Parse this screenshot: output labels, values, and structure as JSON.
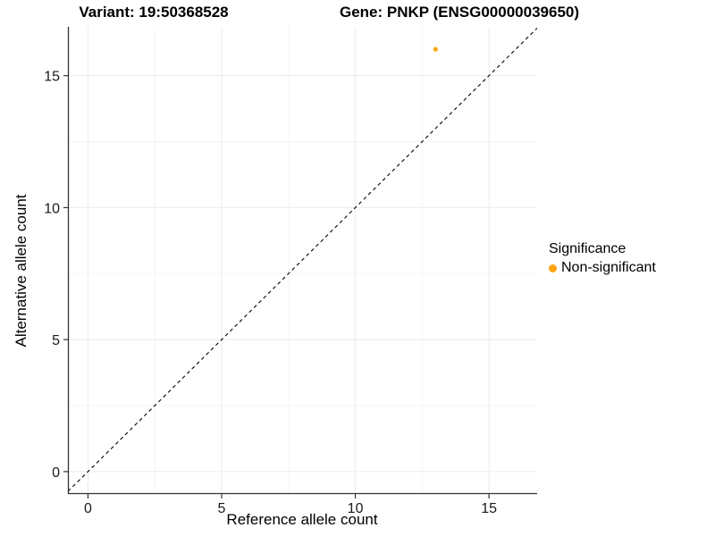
{
  "titles": {
    "variant": "Variant: 19:50368528",
    "gene": "Gene: PNKP (ENSG00000039650)"
  },
  "chart_data": {
    "type": "scatter",
    "xlabel": "Reference allele count",
    "ylabel": "Alternative allele count",
    "x_ticks": [
      0,
      5,
      10,
      15
    ],
    "y_ticks": [
      0,
      5,
      10,
      15
    ],
    "x_minor_ticks": [
      2.5,
      7.5,
      12.5
    ],
    "y_minor_ticks": [
      2.5,
      7.5,
      12.5
    ],
    "xlim": [
      -0.75,
      16.8
    ],
    "ylim": [
      -0.85,
      16.85
    ],
    "grid": "major+minor",
    "legend_position": "right",
    "legend_title": "Significance",
    "identity_line": {
      "equation": "y = x",
      "style": "dashed",
      "color": "#000000"
    },
    "series": [
      {
        "name": "Non-significant",
        "color": "#FFA413",
        "points": [
          {
            "x": 13,
            "y": 16
          }
        ]
      }
    ],
    "colors": {
      "background": "#FFFFFF",
      "grid_major": "#EBEBEB",
      "grid_minor": "#F5F5F5",
      "axis_line": "#333333",
      "tick_label": "#1A1A1A"
    }
  }
}
